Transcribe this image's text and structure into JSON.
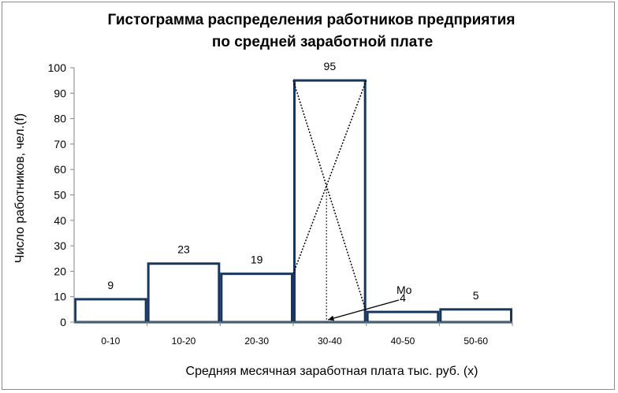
{
  "chart_data": {
    "type": "bar",
    "title_lines": [
      "Гистограмма распределения  работников предприятия",
      "по  средней заработной плате"
    ],
    "xlabel": "Средняя месячная заработная плата    тыс. руб. (x)",
    "ylabel": "Число работников, чел.(f)",
    "categories": [
      "0-10",
      "10-20",
      "20-30",
      "30-40",
      "40-50",
      "50-60"
    ],
    "values": [
      9,
      23,
      19,
      95,
      4,
      5
    ],
    "data_labels": [
      "9",
      "23",
      "19",
      "95",
      "4",
      "5"
    ],
    "ylim": [
      0,
      100
    ],
    "yticks": [
      "0",
      "10",
      "20",
      "30",
      "40",
      "50",
      "60",
      "70",
      "80",
      "90",
      "100"
    ],
    "grid": false,
    "legend": "none",
    "annotation": {
      "text": "Mo",
      "description": "mode construction: crossing dotted diagonals inside the modal bar with a dotted perpendicular to the x axis"
    },
    "colors": {
      "bar_stroke": "#17375e",
      "bar_fill": "#ffffff",
      "axis": "#868686"
    }
  }
}
